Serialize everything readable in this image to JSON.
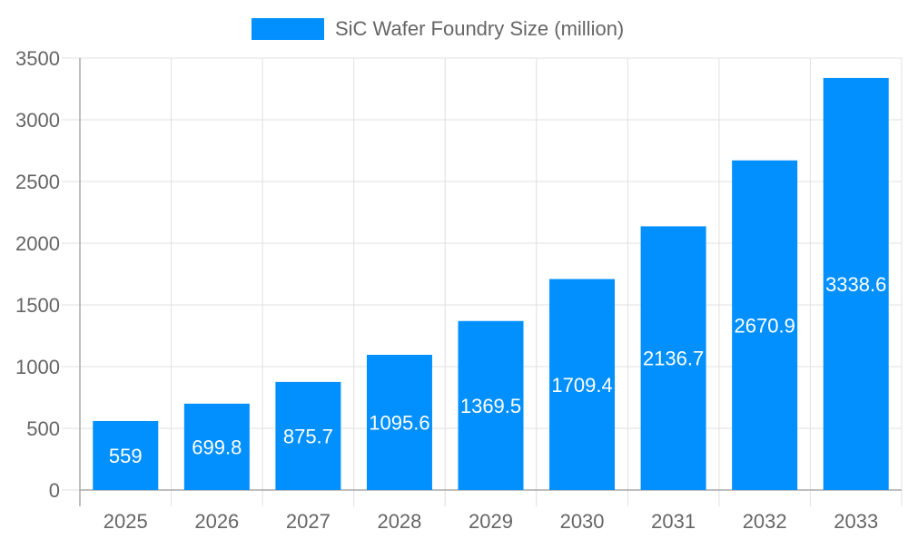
{
  "chart_data": {
    "type": "bar",
    "categories": [
      "2025",
      "2026",
      "2027",
      "2028",
      "2029",
      "2030",
      "2031",
      "2032",
      "2033"
    ],
    "series": [
      {
        "name": "SiC Wafer Foundry Size (million)",
        "values": [
          559,
          699.8,
          875.7,
          1095.6,
          1369.5,
          1709.4,
          2136.7,
          2670.9,
          3338.6
        ],
        "color": "#0290FF"
      }
    ],
    "data_labels": [
      "559",
      "699.8",
      "875.7",
      "1095.6",
      "1369.5",
      "1709.4",
      "2136.7",
      "2670.9",
      "3338.6"
    ],
    "y_ticks": [
      "0",
      "500",
      "1000",
      "1500",
      "2000",
      "2500",
      "3000",
      "3500"
    ],
    "ylim": [
      0,
      3500
    ],
    "xlabel": "",
    "ylabel": "",
    "grid": true,
    "legend_position": "top"
  }
}
